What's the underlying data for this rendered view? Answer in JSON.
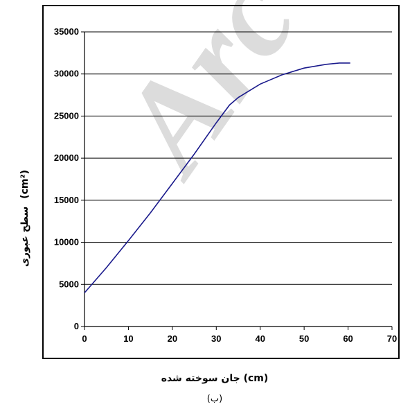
{
  "watermark": "Arc",
  "caption": "(ب)",
  "chart_data": {
    "type": "line",
    "title": "",
    "xlabel": "جان سوخته شده (cm)",
    "ylabel_text": "سطح عبوری",
    "ylabel_unit": "(cm²)",
    "xlim": [
      0,
      70
    ],
    "ylim": [
      0,
      35000
    ],
    "xticks": [
      0,
      10,
      20,
      30,
      40,
      50,
      60,
      70
    ],
    "yticks": [
      0,
      5000,
      10000,
      15000,
      20000,
      25000,
      30000,
      35000
    ],
    "xtick_labels": [
      "0",
      "10",
      "20",
      "30",
      "40",
      "50",
      "60",
      "70"
    ],
    "ytick_labels": [
      "0",
      "5000",
      "10000",
      "15000",
      "20000",
      "25000",
      "30000",
      "35000"
    ],
    "grid": "horizontal",
    "line_color": "#1a1a8c",
    "series": [
      {
        "x": [
          0,
          5,
          10,
          15,
          20,
          25,
          30,
          33,
          35,
          40,
          45,
          50,
          55,
          58,
          60.5
        ],
        "y": [
          4000,
          7000,
          10200,
          13500,
          17000,
          20500,
          24200,
          26300,
          27200,
          28800,
          29900,
          30700,
          31150,
          31300,
          31300
        ]
      }
    ]
  }
}
